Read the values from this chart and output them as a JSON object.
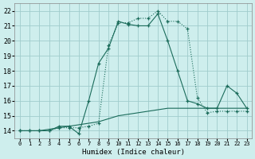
{
  "xlabel": "Humidex (Indice chaleur)",
  "background_color": "#ceeeed",
  "grid_color": "#a0cccc",
  "line_color": "#1a6b5a",
  "xlim": [
    -0.5,
    23.5
  ],
  "ylim": [
    13.5,
    22.5
  ],
  "x_ticks": [
    0,
    1,
    2,
    3,
    4,
    5,
    6,
    7,
    8,
    9,
    10,
    11,
    12,
    13,
    14,
    15,
    16,
    17,
    18,
    19,
    20,
    21,
    22,
    23
  ],
  "y_ticks": [
    14,
    15,
    16,
    17,
    18,
    19,
    20,
    21,
    22
  ],
  "line1_x": [
    0,
    1,
    2,
    3,
    4,
    5,
    6,
    7,
    8,
    9,
    10,
    11,
    12,
    13,
    14,
    15,
    16,
    17,
    18,
    19,
    20,
    21,
    22,
    23
  ],
  "line1_y": [
    14.0,
    14.0,
    14.0,
    14.0,
    14.3,
    14.3,
    13.8,
    16.0,
    18.5,
    19.5,
    21.3,
    21.1,
    21.0,
    21.0,
    21.8,
    20.0,
    18.0,
    16.0,
    15.8,
    15.5,
    15.5,
    17.0,
    16.5,
    15.5
  ],
  "line2_x": [
    0,
    1,
    2,
    3,
    4,
    5,
    6,
    7,
    8,
    9,
    10,
    11,
    12,
    13,
    14,
    15,
    16,
    17,
    18,
    19,
    20,
    21,
    22,
    23
  ],
  "line2_y": [
    14.0,
    14.0,
    14.0,
    14.0,
    14.2,
    14.2,
    14.2,
    14.3,
    14.5,
    19.7,
    21.2,
    21.2,
    21.5,
    21.5,
    22.0,
    21.3,
    21.3,
    20.8,
    16.2,
    15.2,
    15.3,
    15.3,
    15.3,
    15.3
  ],
  "line3_x": [
    0,
    1,
    2,
    3,
    4,
    5,
    6,
    7,
    8,
    9,
    10,
    11,
    12,
    13,
    14,
    15,
    16,
    17,
    18,
    19,
    20,
    21,
    22,
    23
  ],
  "line3_y": [
    14.0,
    14.0,
    14.0,
    14.1,
    14.2,
    14.3,
    14.4,
    14.5,
    14.6,
    14.8,
    15.0,
    15.1,
    15.2,
    15.3,
    15.4,
    15.5,
    15.5,
    15.5,
    15.5,
    15.5,
    15.5,
    15.5,
    15.5,
    15.5
  ]
}
